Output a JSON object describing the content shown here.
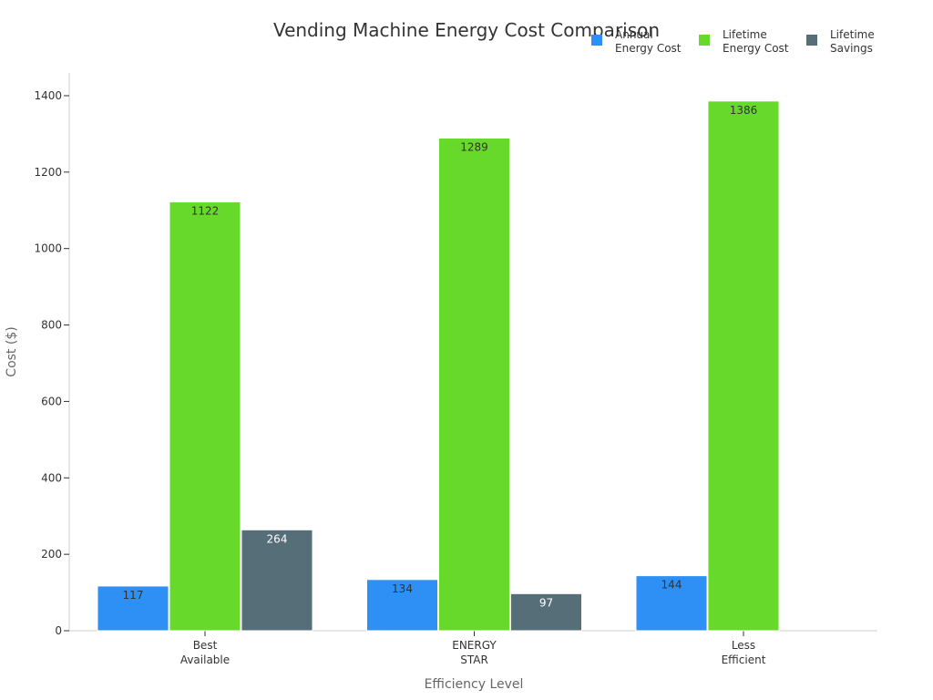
{
  "chart_data": {
    "type": "bar",
    "title": "Vending Machine Energy Cost Comparison",
    "xlabel": "Efficiency Level",
    "ylabel": "Cost ($)",
    "ylim": [
      0,
      1460
    ],
    "yticks": [
      0,
      200,
      400,
      600,
      800,
      1000,
      1200,
      1400
    ],
    "categories": [
      [
        "Best",
        "Available"
      ],
      [
        "ENERGY",
        "STAR"
      ],
      [
        "Less",
        "Efficient"
      ]
    ],
    "series": [
      {
        "name": [
          "Annual",
          "Energy Cost"
        ],
        "color": "#2e8ff5",
        "label_color": "#333333",
        "values": [
          117,
          134,
          144
        ]
      },
      {
        "name": [
          "Lifetime",
          "Energy Cost"
        ],
        "color": "#66d92a",
        "label_color": "#333333",
        "values": [
          1122,
          1289,
          1386
        ]
      },
      {
        "name": [
          "Lifetime",
          "Savings"
        ],
        "color": "#566e78",
        "label_color": "#ffffff",
        "values": [
          264,
          97,
          null
        ]
      }
    ],
    "legend": "top-right",
    "grid": false
  }
}
